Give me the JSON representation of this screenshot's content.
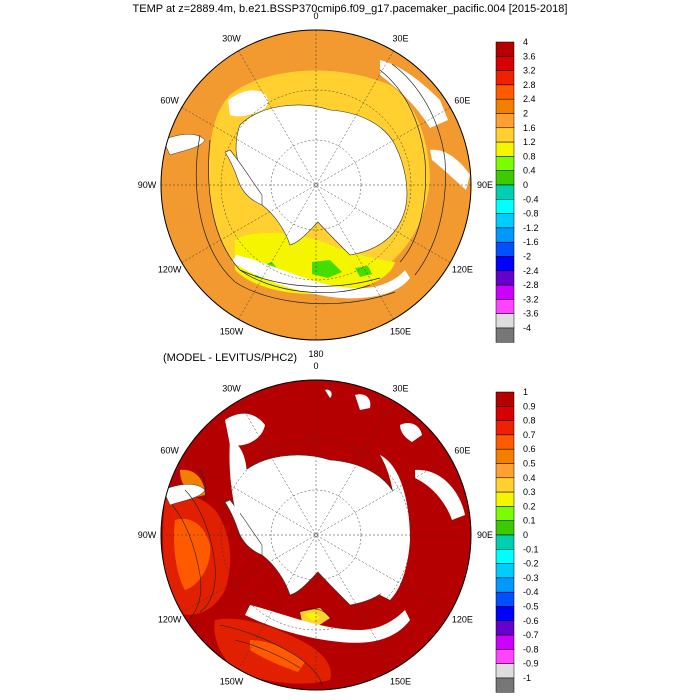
{
  "title": "TEMP at z=2889.4m, b.e21.BSSP370cmip6.f09_g17.pacemaker_pacific.004 [2015-2018]",
  "subtitle": "(MODEL - LEVITUS/PHC2)",
  "longitude_labels": [
    "0",
    "30E",
    "60E",
    "90E",
    "120E",
    "150E",
    "180",
    "150W",
    "120W",
    "90W",
    "60W",
    "30W"
  ],
  "panel_top": {
    "colorbar_labels": [
      "4",
      "3.6",
      "3.2",
      "2.8",
      "2.4",
      "2",
      "1.6",
      "1.2",
      "0.8",
      "0.4",
      "0",
      "-0.4",
      "-0.8",
      "-1.2",
      "-1.6",
      "-2",
      "-2.4",
      "-2.8",
      "-3.2",
      "-3.6",
      "-4"
    ],
    "colors": [
      "#b40000",
      "#d80000",
      "#f02000",
      "#ff5a00",
      "#f27f00",
      "#ffa030",
      "#ffd030",
      "#f5f500",
      "#7cfc00",
      "#3ccb00",
      "#00d0b0",
      "#00ffff",
      "#00ccff",
      "#0099ff",
      "#0050ff",
      "#0000ff",
      "#6600cc",
      "#cc00ff",
      "#ff44ff",
      "#dddddd",
      "#777777"
    ]
  },
  "panel_bottom": {
    "colorbar_labels": [
      "1",
      "0.9",
      "0.8",
      "0.7",
      "0.6",
      "0.5",
      "0.4",
      "0.3",
      "0.2",
      "0.1",
      "0",
      "-0.1",
      "-0.2",
      "-0.3",
      "-0.4",
      "-0.5",
      "-0.6",
      "-0.7",
      "-0.8",
      "-0.9",
      "-1"
    ],
    "colors": [
      "#b40000",
      "#d80000",
      "#f02000",
      "#ff5a00",
      "#f27f00",
      "#ffa030",
      "#ffd030",
      "#f5f500",
      "#7cfc00",
      "#3ccb00",
      "#00d0b0",
      "#00ffff",
      "#00ccff",
      "#0099ff",
      "#0050ff",
      "#0000ff",
      "#6600cc",
      "#cc00ff",
      "#ff44ff",
      "#dddddd",
      "#777777"
    ]
  }
}
